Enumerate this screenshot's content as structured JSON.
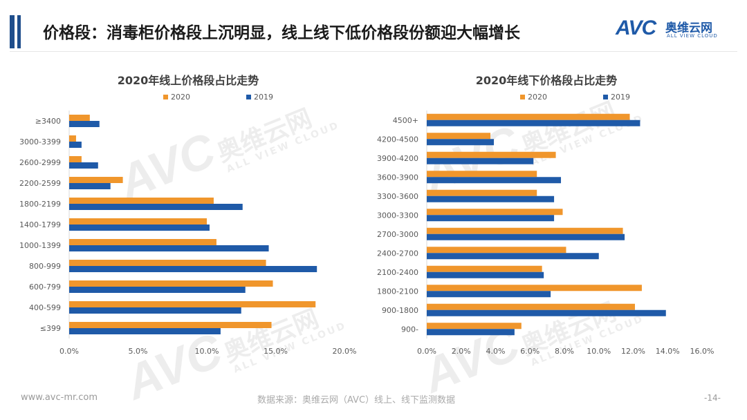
{
  "header": {
    "title": "价格段：消毒柜价格段上沉明显，线上线下低价格段份额迎大幅增长",
    "logo_mark": "AVC",
    "logo_cn": "奥维云网",
    "logo_en": "ALL VIEW CLOUD"
  },
  "watermark": {
    "mark": "AVC",
    "cn": "奥维云网",
    "en": "ALL VIEW CLOUD"
  },
  "colors": {
    "s2020": "#f0962c",
    "s2019": "#1f5aa8",
    "axis": "#d9d9d9",
    "text": "#595959"
  },
  "chart_data": [
    {
      "type": "bar",
      "orientation": "horizontal",
      "title": "2020年线上价格段占比走势",
      "categories": [
        "≤399",
        "400-599",
        "600-799",
        "800-999",
        "1000-1399",
        "1400-1799",
        "1800-2199",
        "2200-2599",
        "2600-2999",
        "3000-3399",
        "≥3400"
      ],
      "series": [
        {
          "name": "2020",
          "values": [
            14.7,
            17.9,
            14.8,
            14.3,
            10.7,
            10.0,
            10.5,
            3.9,
            0.9,
            0.5,
            1.5
          ]
        },
        {
          "name": "2019",
          "values": [
            11.0,
            12.5,
            12.8,
            18.0,
            14.5,
            10.2,
            12.6,
            3.0,
            2.1,
            0.9,
            2.2
          ]
        }
      ],
      "xlim": [
        0,
        20
      ],
      "xticks": [
        "0.0%",
        "5.0%",
        "10.0%",
        "15.0%",
        "20.0%"
      ],
      "legend": "top"
    },
    {
      "type": "bar",
      "orientation": "horizontal",
      "title": "2020年线下价格段占比走势",
      "categories": [
        "900-",
        "900-1800",
        "1800-2100",
        "2100-2400",
        "2400-2700",
        "2700-3000",
        "3000-3300",
        "3300-3600",
        "3600-3900",
        "3900-4200",
        "4200-4500",
        "4500+"
      ],
      "series": [
        {
          "name": "2020",
          "values": [
            5.5,
            12.1,
            12.5,
            6.7,
            8.1,
            11.4,
            7.9,
            6.4,
            6.4,
            7.5,
            3.7,
            11.8
          ]
        },
        {
          "name": "2019",
          "values": [
            5.1,
            13.9,
            7.2,
            6.8,
            10.0,
            11.5,
            7.4,
            7.4,
            7.8,
            6.2,
            3.9,
            12.4
          ]
        }
      ],
      "xlim": [
        0,
        16
      ],
      "xticks": [
        "0.0%",
        "2.0%",
        "4.0%",
        "6.0%",
        "8.0%",
        "10.0%",
        "12.0%",
        "14.0%",
        "16.0%"
      ],
      "legend": "top"
    }
  ],
  "footer": {
    "url": "www.avc-mr.com",
    "source": "数据来源：奥维云网（AVC）线上、线下监测数据",
    "page": "-14-"
  }
}
